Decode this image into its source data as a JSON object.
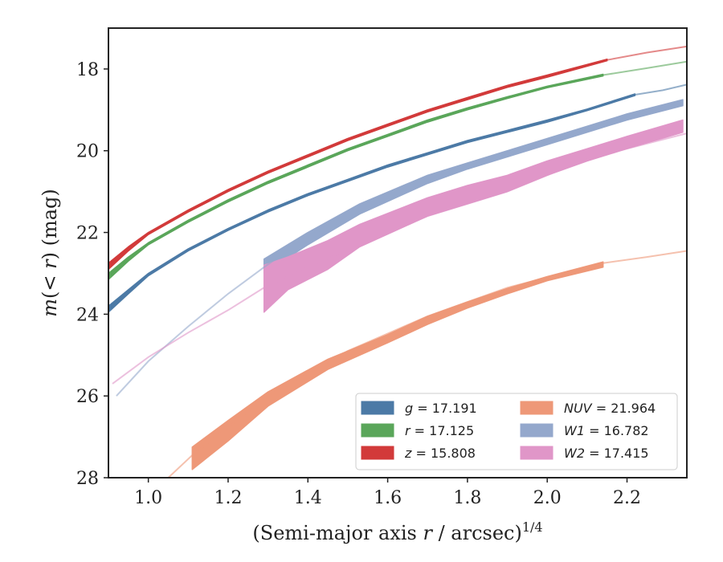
{
  "chart_data": {
    "type": "line",
    "xlabel": "(Semi-major axis r / arcsec)",
    "xlabel_var": "r",
    "xlabel_sup": "1/4",
    "ylabel": "m(< r) (mag)",
    "xlim": [
      0.9,
      2.35
    ],
    "ylim": [
      28,
      17
    ],
    "y_inverted": true,
    "grid": false,
    "legend_position": "lower-right",
    "x_ticks": [
      1.0,
      1.2,
      1.4,
      1.6,
      1.8,
      2.0,
      2.2
    ],
    "x_tick_labels": [
      "1.0",
      "1.2",
      "1.4",
      "1.6",
      "1.8",
      "2.0",
      "2.2"
    ],
    "y_ticks": [
      18,
      20,
      22,
      24,
      26,
      28
    ],
    "y_tick_labels": [
      "18",
      "20",
      "22",
      "24",
      "26",
      "28"
    ],
    "series": [
      {
        "legend_var": "g",
        "legend_value": "17.191",
        "color": "#4c7aa6",
        "model": [
          [
            2.22,
            18.63
          ],
          [
            2.29,
            18.52
          ],
          [
            2.35,
            18.38
          ]
        ],
        "band": [
          [
            0.9,
            23.8,
            23.95
          ],
          [
            0.95,
            23.4,
            23.5
          ],
          [
            1.0,
            23.0,
            23.06
          ],
          [
            1.1,
            22.4,
            22.45
          ],
          [
            1.2,
            21.9,
            21.95
          ],
          [
            1.3,
            21.45,
            21.5
          ],
          [
            1.4,
            21.05,
            21.1
          ],
          [
            1.5,
            20.7,
            20.75
          ],
          [
            1.6,
            20.35,
            20.4
          ],
          [
            1.7,
            20.05,
            20.1
          ],
          [
            1.8,
            19.75,
            19.8
          ],
          [
            1.9,
            19.5,
            19.55
          ],
          [
            2.0,
            19.25,
            19.3
          ],
          [
            2.1,
            18.98,
            19.02
          ],
          [
            2.22,
            18.61,
            18.65
          ]
        ]
      },
      {
        "legend_var": "r",
        "legend_value": "17.125",
        "color": "#5aa65a",
        "model": [
          [
            2.14,
            18.15
          ],
          [
            2.25,
            17.98
          ],
          [
            2.35,
            17.82
          ]
        ],
        "band": [
          [
            0.9,
            23.0,
            23.15
          ],
          [
            0.95,
            22.6,
            22.7
          ],
          [
            1.0,
            22.25,
            22.3
          ],
          [
            1.1,
            21.7,
            21.75
          ],
          [
            1.2,
            21.2,
            21.25
          ],
          [
            1.3,
            20.75,
            20.8
          ],
          [
            1.4,
            20.35,
            20.4
          ],
          [
            1.5,
            19.95,
            20.0
          ],
          [
            1.6,
            19.6,
            19.65
          ],
          [
            1.7,
            19.25,
            19.3
          ],
          [
            1.8,
            18.95,
            19.0
          ],
          [
            1.9,
            18.68,
            18.72
          ],
          [
            2.0,
            18.42,
            18.46
          ],
          [
            2.14,
            18.13,
            18.17
          ]
        ]
      },
      {
        "legend_var": "z",
        "legend_value": "15.808",
        "color": "#d23a3a",
        "model": [
          [
            2.15,
            17.78
          ],
          [
            2.25,
            17.6
          ],
          [
            2.35,
            17.45
          ]
        ],
        "band": [
          [
            0.9,
            22.75,
            22.9
          ],
          [
            0.95,
            22.35,
            22.45
          ],
          [
            1.0,
            22.0,
            22.05
          ],
          [
            1.1,
            21.45,
            21.5
          ],
          [
            1.2,
            20.95,
            21.0
          ],
          [
            1.3,
            20.5,
            20.55
          ],
          [
            1.4,
            20.1,
            20.15
          ],
          [
            1.5,
            19.7,
            19.75
          ],
          [
            1.6,
            19.35,
            19.4
          ],
          [
            1.7,
            19.0,
            19.05
          ],
          [
            1.8,
            18.7,
            18.75
          ],
          [
            1.9,
            18.4,
            18.45
          ],
          [
            2.0,
            18.15,
            18.2
          ],
          [
            2.15,
            17.76,
            17.8
          ]
        ]
      },
      {
        "legend_var": "NUV",
        "legend_value": "21.964",
        "color": "#ee9878",
        "model": [
          [
            1.05,
            28.0
          ],
          [
            1.11,
            27.45
          ],
          [
            1.3,
            26.0
          ],
          [
            1.5,
            24.9
          ],
          [
            1.7,
            24.05
          ],
          [
            1.9,
            23.35
          ],
          [
            2.14,
            22.75
          ],
          [
            2.25,
            22.6
          ],
          [
            2.35,
            22.45
          ]
        ],
        "band": [
          [
            1.11,
            27.25,
            27.8
          ],
          [
            1.2,
            26.6,
            27.1
          ],
          [
            1.3,
            25.9,
            26.25
          ],
          [
            1.45,
            25.1,
            25.35
          ],
          [
            1.6,
            24.5,
            24.7
          ],
          [
            1.7,
            24.05,
            24.25
          ],
          [
            1.8,
            23.7,
            23.85
          ],
          [
            1.9,
            23.37,
            23.5
          ],
          [
            2.0,
            23.08,
            23.18
          ],
          [
            2.14,
            22.72,
            22.85
          ]
        ]
      },
      {
        "legend_var": "W1",
        "legend_value": "16.782",
        "color": "#94a8cc",
        "model": [
          [
            0.92,
            26.0
          ],
          [
            1.0,
            25.15
          ],
          [
            1.1,
            24.3
          ],
          [
            1.2,
            23.5
          ],
          [
            1.29,
            22.85
          ],
          [
            1.4,
            22.1
          ],
          [
            1.53,
            21.45
          ]
        ],
        "band": [
          [
            1.29,
            22.65,
            23.0
          ],
          [
            1.4,
            22.0,
            22.3
          ],
          [
            1.53,
            21.3,
            21.55
          ],
          [
            1.7,
            20.6,
            20.8
          ],
          [
            1.8,
            20.3,
            20.45
          ],
          [
            1.9,
            20.0,
            20.15
          ],
          [
            2.0,
            19.7,
            19.85
          ],
          [
            2.1,
            19.4,
            19.55
          ],
          [
            2.2,
            19.1,
            19.25
          ],
          [
            2.34,
            18.75,
            18.9
          ]
        ]
      },
      {
        "legend_var": "W2",
        "legend_value": "17.415",
        "color": "#e096c8",
        "model": [
          [
            0.91,
            25.7
          ],
          [
            1.0,
            25.05
          ],
          [
            1.1,
            24.45
          ],
          [
            1.2,
            23.9
          ],
          [
            1.29,
            23.35
          ],
          [
            1.4,
            22.85
          ],
          [
            1.53,
            22.3
          ],
          [
            1.7,
            21.6
          ],
          [
            1.9,
            21.0
          ],
          [
            2.1,
            20.2
          ],
          [
            2.34,
            19.6
          ],
          [
            2.36,
            19.55
          ]
        ],
        "band": [
          [
            1.29,
            22.8,
            23.95
          ],
          [
            1.35,
            22.6,
            23.4
          ],
          [
            1.45,
            22.2,
            22.9
          ],
          [
            1.53,
            21.8,
            22.35
          ],
          [
            1.7,
            21.15,
            21.6
          ],
          [
            1.8,
            20.85,
            21.3
          ],
          [
            1.9,
            20.6,
            21.0
          ],
          [
            2.0,
            20.25,
            20.6
          ],
          [
            2.1,
            19.95,
            20.25
          ],
          [
            2.2,
            19.65,
            19.95
          ],
          [
            2.34,
            19.25,
            19.55
          ]
        ]
      }
    ]
  }
}
